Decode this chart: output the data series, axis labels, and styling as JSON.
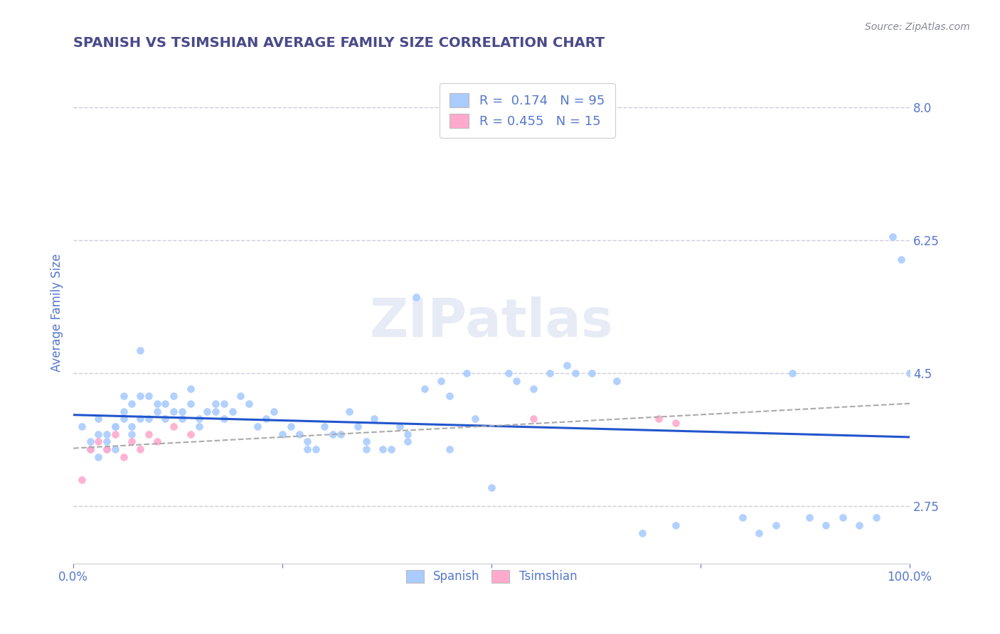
{
  "title": "SPANISH VS TSIMSHIAN AVERAGE FAMILY SIZE CORRELATION CHART",
  "source_text": "Source: ZipAtlas.com",
  "ylabel": "Average Family Size",
  "watermark": "ZIPatlas",
  "xlim": [
    0.0,
    1.0
  ],
  "ylim": [
    2.0,
    8.6
  ],
  "yticks": [
    2.75,
    4.5,
    6.25,
    8.0
  ],
  "title_color": "#4a4a8a",
  "axis_color": "#5577cc",
  "background_color": "#ffffff",
  "grid_color": "#ccccdd",
  "spanish_color": "#aaccff",
  "tsimshian_color": "#ffaacc",
  "spanish_line_color": "#2255cc",
  "tsimshian_line_color": "#cc6688",
  "R_spanish": 0.174,
  "N_spanish": 95,
  "R_tsimshian": 0.455,
  "N_tsimshian": 15,
  "spanish_x": [
    0.01,
    0.02,
    0.02,
    0.03,
    0.03,
    0.03,
    0.04,
    0.04,
    0.04,
    0.05,
    0.05,
    0.05,
    0.06,
    0.06,
    0.06,
    0.07,
    0.07,
    0.07,
    0.08,
    0.08,
    0.08,
    0.09,
    0.09,
    0.1,
    0.1,
    0.11,
    0.11,
    0.12,
    0.12,
    0.13,
    0.13,
    0.14,
    0.14,
    0.15,
    0.15,
    0.16,
    0.17,
    0.17,
    0.18,
    0.18,
    0.19,
    0.2,
    0.21,
    0.22,
    0.23,
    0.24,
    0.25,
    0.26,
    0.27,
    0.28,
    0.29,
    0.3,
    0.31,
    0.32,
    0.33,
    0.34,
    0.35,
    0.36,
    0.37,
    0.38,
    0.39,
    0.4,
    0.41,
    0.42,
    0.44,
    0.45,
    0.47,
    0.48,
    0.5,
    0.52,
    0.53,
    0.55,
    0.57,
    0.59,
    0.6,
    0.62,
    0.65,
    0.68,
    0.72,
    0.8,
    0.82,
    0.84,
    0.86,
    0.88,
    0.9,
    0.92,
    0.94,
    0.96,
    0.98,
    0.99,
    1.0,
    0.35,
    0.4,
    0.45,
    0.28
  ],
  "spanish_y": [
    3.8,
    3.6,
    3.5,
    3.7,
    3.4,
    3.9,
    3.5,
    3.6,
    3.7,
    3.8,
    3.5,
    3.8,
    3.9,
    4.0,
    4.2,
    3.7,
    4.1,
    3.8,
    4.2,
    3.9,
    4.8,
    4.2,
    3.9,
    4.0,
    4.1,
    3.9,
    4.1,
    4.0,
    4.2,
    3.9,
    4.0,
    4.3,
    4.1,
    3.8,
    3.9,
    4.0,
    4.1,
    4.0,
    3.9,
    4.1,
    4.0,
    4.2,
    4.1,
    3.8,
    3.9,
    4.0,
    3.7,
    3.8,
    3.7,
    3.6,
    3.5,
    3.8,
    3.7,
    3.7,
    4.0,
    3.8,
    3.6,
    3.9,
    3.5,
    3.5,
    3.8,
    3.7,
    5.5,
    4.3,
    4.4,
    4.2,
    4.5,
    3.9,
    3.0,
    4.5,
    4.4,
    4.3,
    4.5,
    4.6,
    4.5,
    4.5,
    4.4,
    2.4,
    2.5,
    2.6,
    2.4,
    2.5,
    4.5,
    2.6,
    2.5,
    2.6,
    2.5,
    2.6,
    6.3,
    6.0,
    4.5,
    3.5,
    3.6,
    3.5,
    3.5
  ],
  "tsimshian_x": [
    0.01,
    0.02,
    0.03,
    0.04,
    0.05,
    0.06,
    0.07,
    0.08,
    0.09,
    0.1,
    0.12,
    0.14,
    0.55,
    0.7,
    0.72
  ],
  "tsimshian_y": [
    3.1,
    3.5,
    3.6,
    3.5,
    3.7,
    3.4,
    3.6,
    3.5,
    3.7,
    3.6,
    3.8,
    3.7,
    3.9,
    3.9,
    3.85
  ]
}
